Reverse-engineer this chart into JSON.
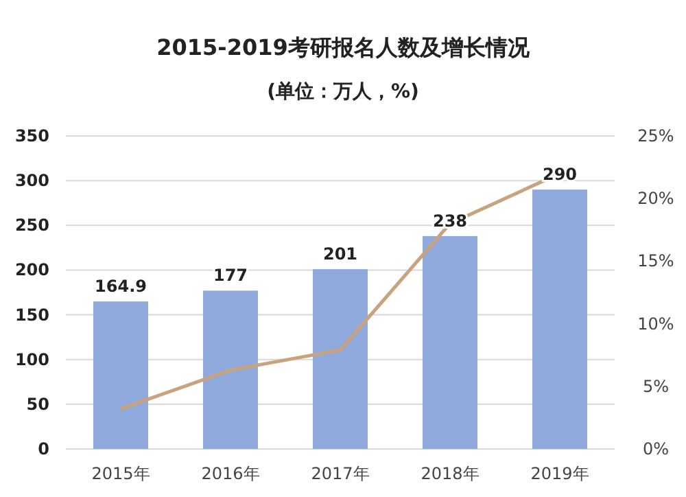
{
  "chart_data": {
    "type": "bar",
    "title": "2015-2019考研报名人数及增长情况",
    "subtitle": "(单位：万人，%)",
    "categories": [
      "2015年",
      "2016年",
      "2017年",
      "2018年",
      "2019年"
    ],
    "series": [
      {
        "color": "#8fa9dc",
        "values": [
          164.9,
          177,
          201,
          238,
          290
        ],
        "data_labels": true
      },
      {
        "type": "line",
        "axis": "y2",
        "color": "#c9a27e",
        "values": [
          3.2,
          6.3,
          7.9,
          18,
          22
        ]
      }
    ],
    "ylim": [
      0,
      350
    ],
    "yticks": [
      0,
      50,
      100,
      150,
      200,
      250,
      300,
      350
    ],
    "y2lim": [
      0,
      25
    ],
    "y2ticks": [
      {
        "value": 0,
        "label": "0%"
      },
      {
        "value": 5,
        "label": "5%"
      },
      {
        "value": 10,
        "label": "10%"
      },
      {
        "value": 15,
        "label": "15%"
      },
      {
        "value": 20,
        "label": "20%"
      },
      {
        "value": 25,
        "label": "25%"
      }
    ],
    "grid": "y",
    "marker": "none",
    "line_style": "solid"
  }
}
